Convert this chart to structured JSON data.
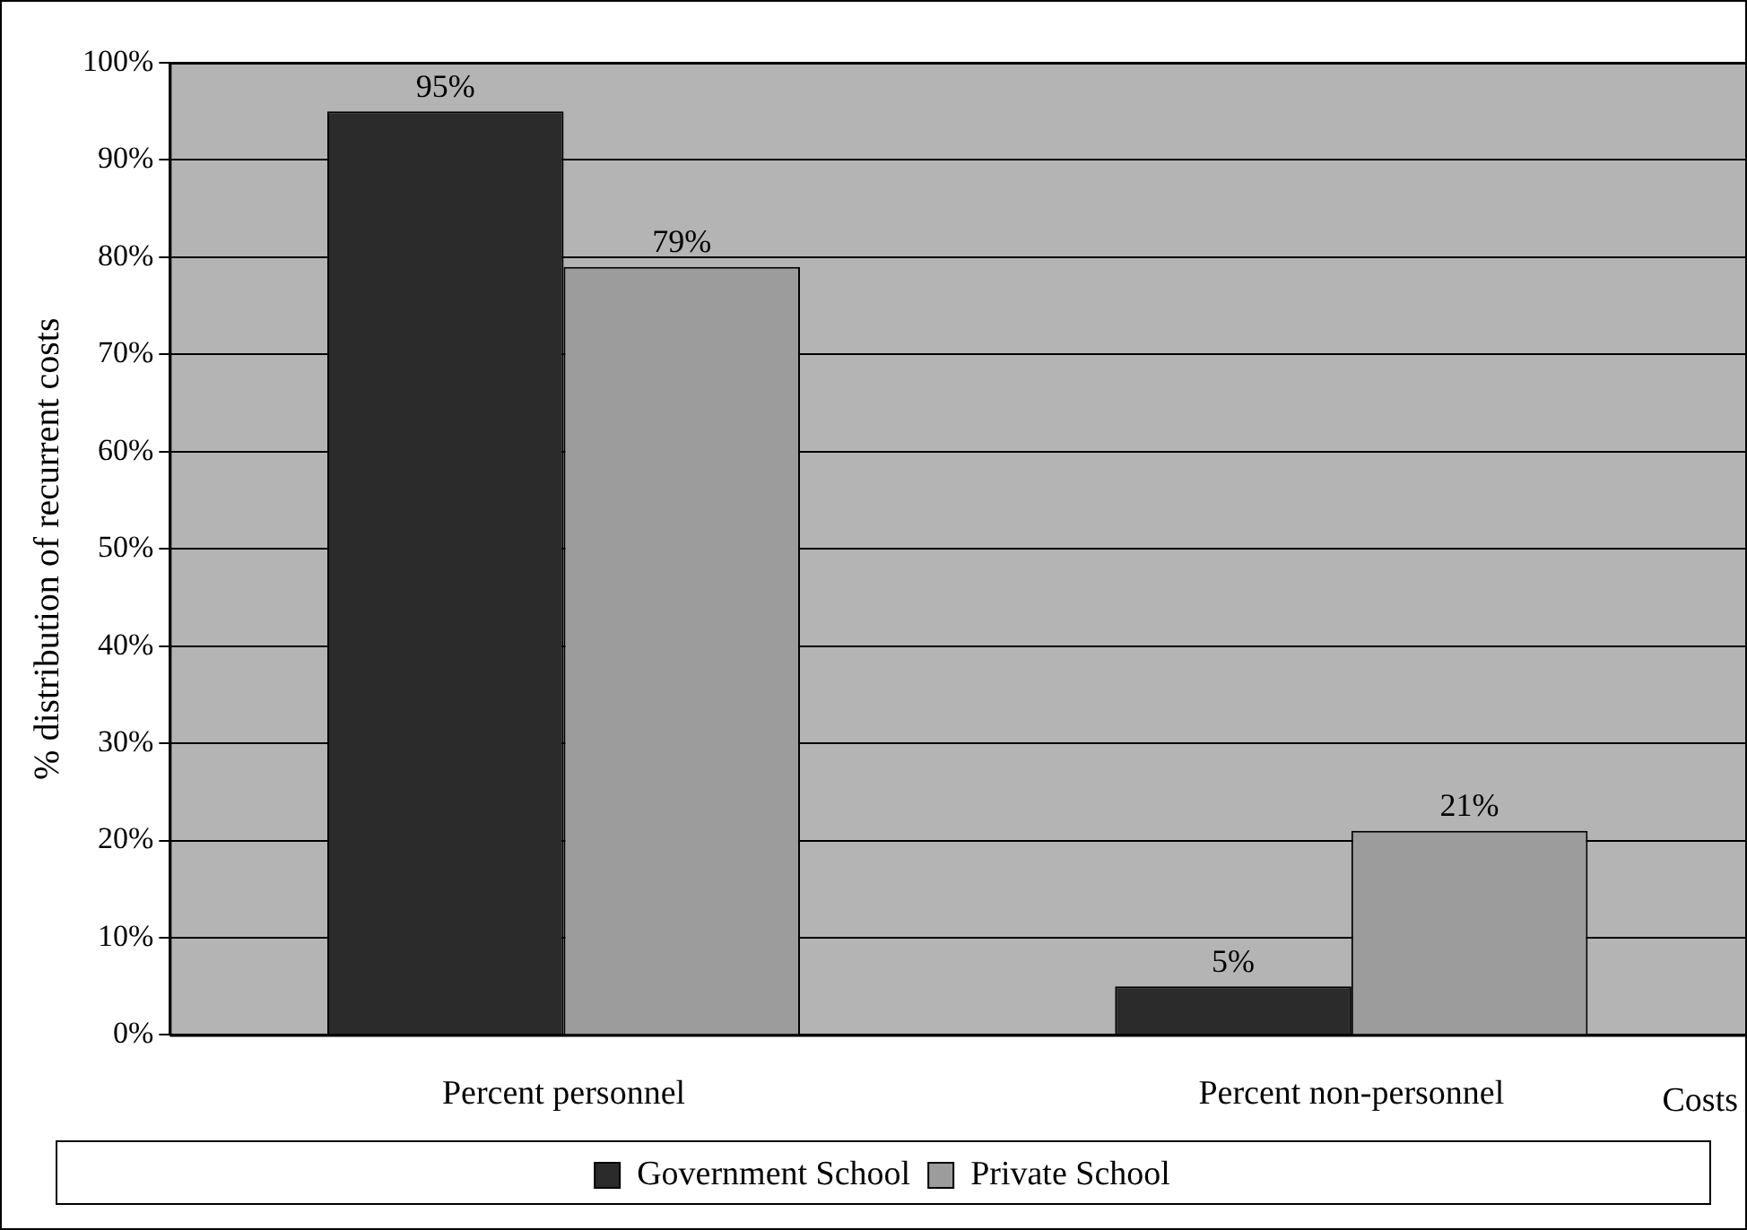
{
  "chart_data": {
    "type": "bar",
    "xlabel": "Costs",
    "ylabel": "% distribution of recurrent costs",
    "categories": [
      "Percent personnel",
      "Percent non-personnel"
    ],
    "series": [
      {
        "name": "Government School",
        "color": "#2b2b2b",
        "values": [
          95,
          5
        ],
        "value_labels": [
          "95%",
          "5%"
        ]
      },
      {
        "name": "Private School",
        "color": "#9c9c9c",
        "values": [
          79,
          21
        ],
        "value_labels": [
          "79%",
          "21%"
        ]
      }
    ],
    "ylim": [
      0,
      100
    ],
    "yticks": [
      {
        "value": 0,
        "label": "0%"
      },
      {
        "value": 10,
        "label": "10%"
      },
      {
        "value": 20,
        "label": "20%"
      },
      {
        "value": 30,
        "label": "30%"
      },
      {
        "value": 40,
        "label": "40%"
      },
      {
        "value": 50,
        "label": "50%"
      },
      {
        "value": 60,
        "label": "60%"
      },
      {
        "value": 70,
        "label": "70%"
      },
      {
        "value": 80,
        "label": "80%"
      },
      {
        "value": 90,
        "label": "90%"
      },
      {
        "value": 100,
        "label": "100%"
      }
    ],
    "grid": "y",
    "legend": "bottom"
  }
}
